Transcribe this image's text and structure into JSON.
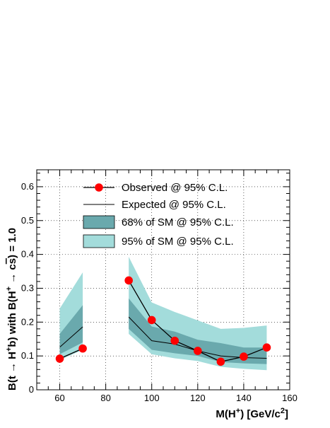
{
  "chart_data": {
    "type": "line",
    "xlabel": "M(H+) [GeV/c2]",
    "ylabel": "B(t → H+b) with B(H+ → cs) = 1.0",
    "xlim": [
      50,
      160
    ],
    "ylim": [
      0,
      0.65
    ],
    "x_ticks": [
      60,
      80,
      100,
      120,
      140,
      160
    ],
    "y_ticks": [
      0,
      0.1,
      0.2,
      0.3,
      0.4,
      0.5,
      0.6
    ],
    "y_tick_labels": [
      "0",
      "0.1",
      "0.2",
      "0.3",
      "0.4",
      "0.5",
      "0.6"
    ],
    "grid": true,
    "legend_position": "top",
    "series": [
      {
        "name": "Observed @ 95% C.L.",
        "style": "line-markers",
        "color": "#ff0000",
        "segments": [
          {
            "x": [
              60,
              70
            ],
            "y": [
              0.092,
              0.122
            ]
          },
          {
            "x": [
              90,
              100,
              110,
              120,
              130,
              140,
              150
            ],
            "y": [
              0.323,
              0.206,
              0.145,
              0.115,
              0.083,
              0.098,
              0.125
            ]
          }
        ]
      },
      {
        "name": "Expected @ 95% C.L.",
        "style": "line",
        "color": "#000000",
        "segments": [
          {
            "x": [
              60,
              70
            ],
            "y": [
              0.126,
              0.186
            ]
          },
          {
            "x": [
              90,
              100,
              110,
              120,
              130,
              140,
              150
            ],
            "y": [
              0.215,
              0.145,
              0.135,
              0.115,
              0.1,
              0.095,
              0.093
            ]
          }
        ]
      },
      {
        "name": "68% of SM @ 95% C.L.",
        "style": "band",
        "color": "#6aa9ad",
        "segments": [
          {
            "x": [
              60,
              70
            ],
            "low": [
              0.105,
              0.14
            ],
            "high": [
              0.165,
              0.25
            ]
          },
          {
            "x": [
              90,
              100,
              110,
              120,
              130,
              140,
              150
            ],
            "low": [
              0.18,
              0.118,
              0.108,
              0.1,
              0.082,
              0.078,
              0.076
            ],
            "high": [
              0.27,
              0.187,
              0.172,
              0.148,
              0.138,
              0.125,
              0.125
            ]
          }
        ]
      },
      {
        "name": "95% of SM @ 95% C.L.",
        "style": "band",
        "color": "#a3dcdb",
        "segments": [
          {
            "x": [
              60,
              70
            ],
            "low": [
              0.088,
              0.118
            ],
            "high": [
              0.24,
              0.347
            ]
          },
          {
            "x": [
              90,
              100,
              110,
              120,
              130,
              140,
              150
            ],
            "low": [
              0.165,
              0.105,
              0.093,
              0.085,
              0.068,
              0.062,
              0.058
            ],
            "high": [
              0.393,
              0.258,
              0.23,
              0.205,
              0.18,
              0.183,
              0.19
            ]
          }
        ]
      }
    ]
  }
}
